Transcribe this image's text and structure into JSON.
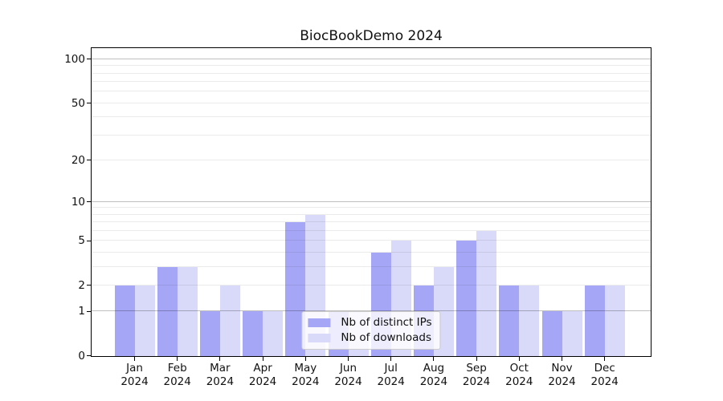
{
  "figure": {
    "title": "BiocBookDemo 2024"
  },
  "chart_data": {
    "type": "bar",
    "title": "BiocBookDemo 2024",
    "categories": [
      "Jan",
      "Feb",
      "Mar",
      "Apr",
      "May",
      "Jun",
      "Jul",
      "Aug",
      "Sep",
      "Oct",
      "Nov",
      "Dec"
    ],
    "category_year": "2024",
    "series": [
      {
        "name": "Nb of distinct IPs",
        "color": "#a6a6f6",
        "values": [
          2,
          3,
          1,
          1,
          7,
          1,
          4,
          2,
          5,
          2,
          1,
          2
        ]
      },
      {
        "name": "Nb of downloads",
        "color": "#d9d9f9",
        "values": [
          2,
          3,
          2,
          1,
          8,
          1,
          5,
          3,
          6,
          2,
          1,
          2
        ]
      }
    ],
    "xlabel": "",
    "ylabel": "",
    "yscale": "log1p",
    "ylim": [
      0,
      119
    ],
    "yticks": [
      0,
      1,
      2,
      5,
      10,
      20,
      50,
      100
    ],
    "gridlines": {
      "decade": [
        1,
        10,
        100
      ],
      "minor": [
        2,
        3,
        4,
        5,
        6,
        7,
        8,
        9,
        20,
        30,
        40,
        50,
        60,
        70,
        80,
        90
      ]
    },
    "grid": true,
    "legend_position": "lower center",
    "colors": {
      "axis": "#000000",
      "grid_decade": "rgba(0,0,0,0.25)",
      "grid_minor": "rgba(0,0,0,0.08)"
    }
  }
}
